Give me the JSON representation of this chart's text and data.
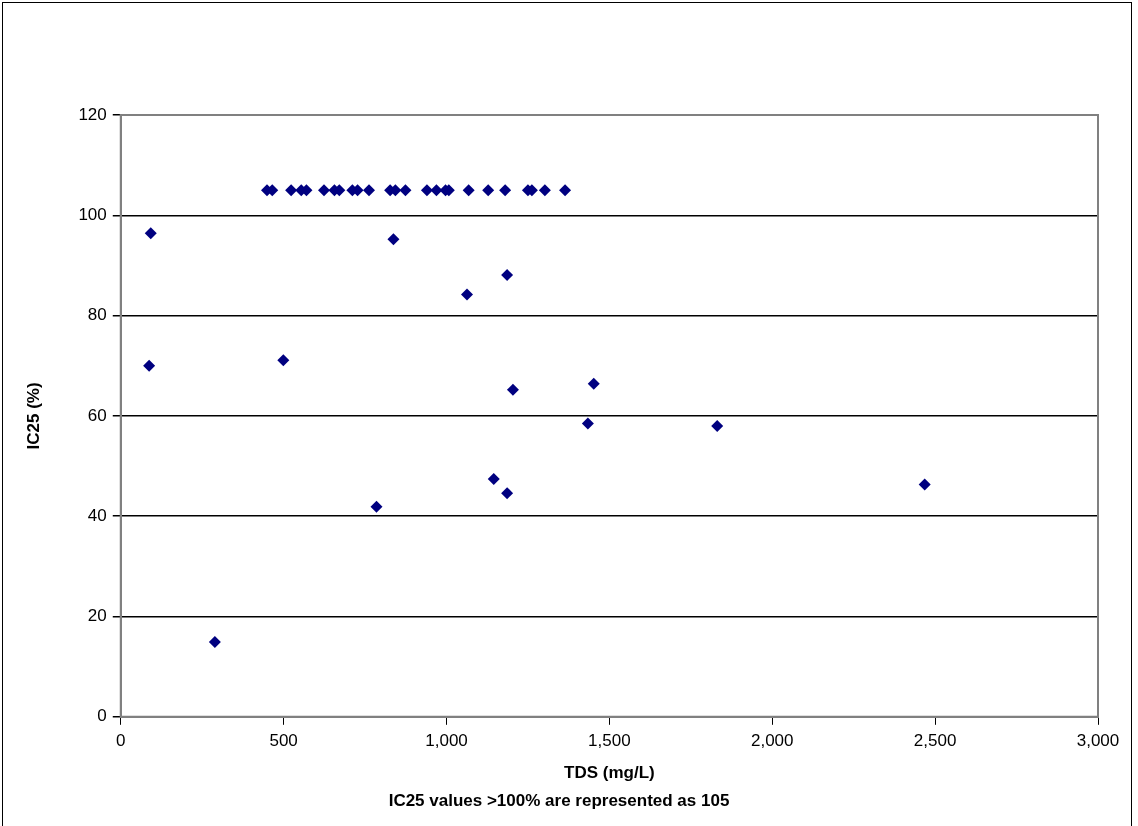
{
  "chart_data": {
    "type": "scatter",
    "xlabel": "TDS (mg/L)",
    "ylabel": "IC25 (%)",
    "annotations": [
      "IC25 values >100% are represented as 105"
    ],
    "series": [
      {
        "color": "#000080",
        "x": [
          449,
          465,
          523,
          554,
          570,
          624,
          656,
          671,
          711,
          727,
          762,
          827,
          843,
          874,
          940,
          969,
          997,
          1007,
          1068,
          1128,
          1180,
          1250,
          1262,
          1302,
          1364,
          92,
          837,
          1063,
          87,
          499,
          1186,
          1204,
          1452,
          1434,
          1831,
          1145,
          1186,
          785,
          289,
          2468
        ],
        "values": [
          105,
          105,
          105,
          105,
          105,
          105,
          105,
          105,
          105,
          105,
          105,
          105,
          105,
          105,
          105,
          105,
          105,
          105,
          105,
          105,
          105,
          105,
          105,
          105,
          105,
          96.4,
          95.2,
          84.2,
          70,
          71.1,
          88.1,
          65.2,
          66.4,
          58.5,
          58,
          47.4,
          44.6,
          41.9,
          14.9,
          46.3
        ]
      }
    ],
    "xlim": [
      0,
      3000
    ],
    "xticks": [
      0,
      {
        "value": 500,
        "label": "500"
      },
      {
        "value": 1000,
        "label": "1,000"
      },
      {
        "value": 1500,
        "label": "1,500"
      },
      {
        "value": 2000,
        "label": "2,000"
      },
      {
        "value": 2500,
        "label": "2,500"
      },
      {
        "value": 3000,
        "label": "3,000"
      }
    ],
    "ylim": [
      0,
      120
    ],
    "yticks": [
      0,
      20,
      40,
      60,
      80,
      100,
      120
    ],
    "grid": "y",
    "legend": false,
    "marker": "diamond"
  }
}
